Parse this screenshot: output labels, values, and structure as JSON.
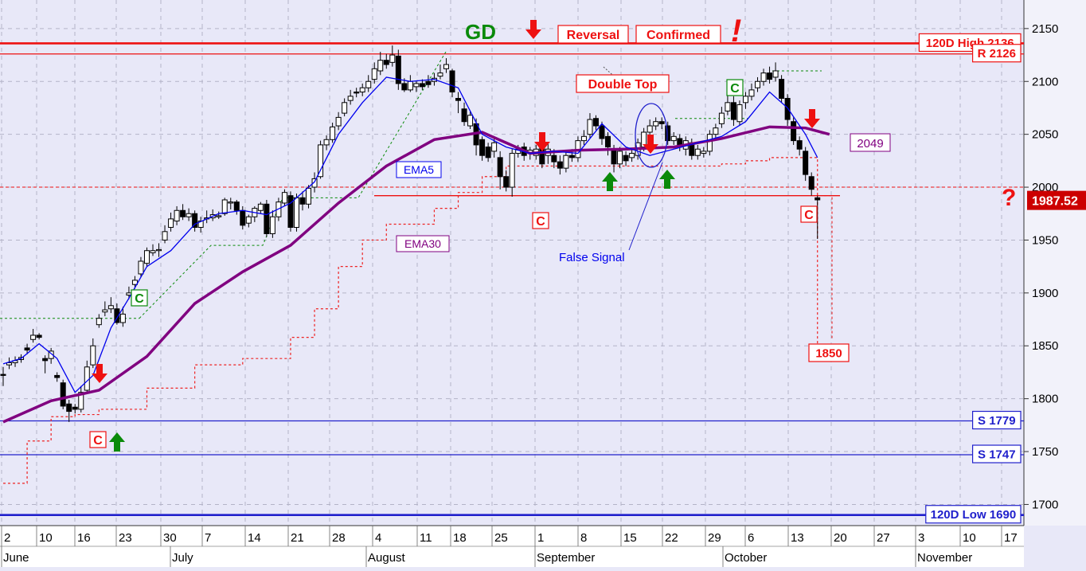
{
  "chart_data": {
    "type": "candlestick",
    "title": "",
    "xlabel": "",
    "ylabel": "",
    "ylim": [
      1680,
      2180
    ],
    "yticks": [
      1700,
      1750,
      1800,
      1850,
      1900,
      1950,
      2000,
      2050,
      2100,
      2150
    ],
    "grid": true,
    "x_tick_labels": [
      "2",
      "10",
      "16",
      "23",
      "30",
      "7",
      "14",
      "21",
      "28",
      "4",
      "11",
      "18",
      "25",
      "1",
      "8",
      "15",
      "22",
      "29",
      "6",
      "13",
      "20",
      "27",
      "3",
      "10",
      "17"
    ],
    "month_labels": [
      "June",
      "July",
      "August",
      "September",
      "October",
      "November"
    ],
    "last_price": "1987.52",
    "candles": [
      [
        1823,
        1822,
        1830,
        1812
      ],
      [
        1832,
        1834,
        1839,
        1828
      ],
      [
        1834,
        1836,
        1840,
        1830
      ],
      [
        1837,
        1839,
        1842,
        1834
      ],
      [
        1848,
        1846,
        1852,
        1842
      ],
      [
        1856,
        1860,
        1866,
        1853
      ],
      [
        1860,
        1858,
        1862,
        1856
      ],
      [
        1838,
        1836,
        1841,
        1824
      ],
      [
        1838,
        1845,
        1848,
        1833
      ],
      [
        1822,
        1820,
        1825,
        1816
      ],
      [
        1815,
        1793,
        1818,
        1790
      ],
      [
        1795,
        1788,
        1799,
        1778
      ],
      [
        1792,
        1790,
        1795,
        1786
      ],
      [
        1790,
        1806,
        1812,
        1787
      ],
      [
        1808,
        1830,
        1836,
        1805
      ],
      [
        1832,
        1850,
        1857,
        1829
      ],
      [
        1870,
        1876,
        1880,
        1867
      ],
      [
        1882,
        1884,
        1892,
        1878
      ],
      [
        1885,
        1888,
        1896,
        1881
      ],
      [
        1885,
        1872,
        1890,
        1870
      ],
      [
        1872,
        1880,
        1887,
        1868
      ],
      [
        1898,
        1900,
        1906,
        1894
      ],
      [
        1908,
        1912,
        1916,
        1904
      ],
      [
        1918,
        1930,
        1934,
        1915
      ],
      [
        1928,
        1940,
        1943,
        1925
      ],
      [
        1938,
        1940,
        1946,
        1935
      ],
      [
        1940,
        1941,
        1947,
        1934
      ],
      [
        1950,
        1958,
        1964,
        1947
      ],
      [
        1962,
        1970,
        1976,
        1958
      ],
      [
        1968,
        1978,
        1982,
        1964
      ],
      [
        1978,
        1972,
        1984,
        1969
      ],
      [
        1972,
        1975,
        1980,
        1968
      ],
      [
        1975,
        1962,
        1978,
        1958
      ],
      [
        1962,
        1968,
        1972,
        1957
      ],
      [
        1970,
        1971,
        1978,
        1966
      ],
      [
        1971,
        1974,
        1979,
        1968
      ],
      [
        1972,
        1973,
        1977,
        1970
      ],
      [
        1975,
        1988,
        1990,
        1973
      ],
      [
        1985,
        1986,
        1990,
        1979
      ],
      [
        1986,
        1978,
        1988,
        1974
      ],
      [
        1978,
        1964,
        1982,
        1960
      ],
      [
        1966,
        1972,
        1974,
        1962
      ],
      [
        1972,
        1980,
        1982,
        1967
      ],
      [
        1978,
        1984,
        1986,
        1975
      ],
      [
        1984,
        1956,
        1988,
        1953
      ],
      [
        1956,
        1972,
        1978,
        1952
      ],
      [
        1972,
        1986,
        1990,
        1968
      ],
      [
        1985,
        1995,
        1998,
        1982
      ],
      [
        1992,
        1962,
        1996,
        1958
      ],
      [
        1962,
        1990,
        1994,
        1958
      ],
      [
        1990,
        1984,
        1996,
        1978
      ],
      [
        1984,
        1999,
        2002,
        1980
      ],
      [
        2000,
        2008,
        2014,
        1995
      ],
      [
        2010,
        2040,
        2044,
        2008
      ],
      [
        2040,
        2045,
        2049,
        2035
      ],
      [
        2045,
        2057,
        2061,
        2042
      ],
      [
        2058,
        2066,
        2071,
        2054
      ],
      [
        2070,
        2080,
        2084,
        2067
      ],
      [
        2082,
        2086,
        2092,
        2078
      ],
      [
        2090,
        2089,
        2094,
        2085
      ],
      [
        2090,
        2094,
        2098,
        2086
      ],
      [
        2094,
        2100,
        2106,
        2090
      ],
      [
        2102,
        2112,
        2118,
        2098
      ],
      [
        2110,
        2120,
        2128,
        2106
      ],
      [
        2120,
        2116,
        2126,
        2112
      ],
      [
        2118,
        2125,
        2134,
        2114
      ],
      [
        2124,
        2098,
        2130,
        2092
      ],
      [
        2098,
        2092,
        2103,
        2090
      ],
      [
        2092,
        2100,
        2106,
        2090
      ],
      [
        2095,
        2098,
        2100,
        2090
      ],
      [
        2098,
        2095,
        2102,
        2092
      ],
      [
        2100,
        2097,
        2106,
        2094
      ],
      [
        2100,
        2103,
        2108,
        2096
      ],
      [
        2105,
        2108,
        2116,
        2102
      ],
      [
        2112,
        2116,
        2122,
        2108
      ],
      [
        2110,
        2090,
        2112,
        2085
      ],
      [
        2084,
        2082,
        2090,
        2070
      ],
      [
        2074,
        2062,
        2080,
        2058
      ],
      [
        2058,
        2068,
        2072,
        2055
      ],
      [
        2060,
        2040,
        2065,
        2030
      ],
      [
        2045,
        2030,
        2048,
        2025
      ],
      [
        2038,
        2028,
        2042,
        2024
      ],
      [
        2034,
        2042,
        2046,
        2028
      ],
      [
        2028,
        2010,
        2034,
        1998
      ],
      [
        2010,
        2000,
        2016,
        1996
      ],
      [
        2000,
        2032,
        2036,
        1991
      ],
      [
        2032,
        2036,
        2040,
        2028
      ],
      [
        2038,
        2030,
        2042,
        2025
      ],
      [
        2032,
        2035,
        2038,
        2026
      ],
      [
        2030,
        2036,
        2040,
        2026
      ],
      [
        2038,
        2022,
        2042,
        2018
      ],
      [
        2030,
        2036,
        2042,
        2022
      ],
      [
        2030,
        2024,
        2036,
        2018
      ],
      [
        2024,
        2018,
        2030,
        2012
      ],
      [
        2018,
        2030,
        2034,
        2014
      ],
      [
        2030,
        2028,
        2036,
        2024
      ],
      [
        2028,
        2044,
        2048,
        2024
      ],
      [
        2044,
        2048,
        2054,
        2040
      ],
      [
        2050,
        2064,
        2070,
        2046
      ],
      [
        2065,
        2058,
        2068,
        2054
      ],
      [
        2058,
        2046,
        2062,
        2040
      ],
      [
        2048,
        2038,
        2052,
        2030
      ],
      [
        2036,
        2022,
        2040,
        2014
      ],
      [
        2022,
        2034,
        2038,
        2018
      ],
      [
        2030,
        2025,
        2034,
        2020
      ],
      [
        2028,
        2032,
        2036,
        2024
      ],
      [
        2030,
        2042,
        2046,
        2026
      ],
      [
        2038,
        2052,
        2056,
        2034
      ],
      [
        2052,
        2058,
        2064,
        2048
      ],
      [
        2058,
        2062,
        2066,
        2054
      ],
      [
        2062,
        2060,
        2066,
        2055
      ],
      [
        2058,
        2044,
        2062,
        2040
      ],
      [
        2044,
        2048,
        2052,
        2040
      ],
      [
        2046,
        2038,
        2050,
        2034
      ],
      [
        2036,
        2044,
        2048,
        2030
      ],
      [
        2042,
        2030,
        2046,
        2026
      ],
      [
        2030,
        2036,
        2040,
        2026
      ],
      [
        2032,
        2034,
        2038,
        2028
      ],
      [
        2034,
        2050,
        2054,
        2030
      ],
      [
        2050,
        2056,
        2060,
        2046
      ],
      [
        2060,
        2070,
        2076,
        2056
      ],
      [
        2072,
        2080,
        2090,
        2068
      ],
      [
        2080,
        2064,
        2086,
        2058
      ],
      [
        2062,
        2078,
        2082,
        2058
      ],
      [
        2080,
        2086,
        2090,
        2074
      ],
      [
        2086,
        2092,
        2098,
        2082
      ],
      [
        2094,
        2100,
        2104,
        2090
      ],
      [
        2100,
        2108,
        2112,
        2096
      ],
      [
        2108,
        2102,
        2114,
        2098
      ],
      [
        2104,
        2110,
        2118,
        2100
      ],
      [
        2102,
        2084,
        2106,
        2080
      ],
      [
        2084,
        2064,
        2088,
        2058
      ],
      [
        2062,
        2044,
        2066,
        2040
      ],
      [
        2044,
        2036,
        2048,
        2030
      ],
      [
        2034,
        2012,
        2038,
        2006
      ],
      [
        2010,
        1998,
        2014,
        1992
      ],
      [
        1990,
        1988,
        1992,
        1951
      ]
    ],
    "series": [
      {
        "name": "EMA5",
        "type": "line",
        "color": "#0000ee",
        "x": [
          0,
          3,
          6,
          9,
          12,
          15,
          18,
          21,
          24,
          28,
          32,
          36,
          40,
          44,
          48,
          52,
          56,
          60,
          64,
          68,
          72,
          76,
          80,
          84,
          88,
          92,
          96,
          100,
          104,
          108,
          112,
          116,
          120,
          124,
          128,
          131,
          134,
          136
        ],
        "values": [
          1833,
          1838,
          1852,
          1838,
          1806,
          1822,
          1867,
          1895,
          1925,
          1940,
          1965,
          1975,
          1978,
          1974,
          1985,
          2005,
          2050,
          2080,
          2104,
          2100,
          2102,
          2094,
          2050,
          2038,
          2032,
          2034,
          2032,
          2060,
          2038,
          2030,
          2036,
          2042,
          2048,
          2062,
          2090,
          2075,
          2050,
          2028
        ]
      },
      {
        "name": "EMA30",
        "type": "line",
        "color": "#800080",
        "x": [
          0,
          8,
          16,
          24,
          32,
          40,
          48,
          56,
          64,
          72,
          80,
          88,
          96,
          104,
          112,
          120,
          128,
          134,
          138
        ],
        "values": [
          1778,
          1798,
          1808,
          1840,
          1890,
          1920,
          1945,
          1985,
          2020,
          2045,
          2052,
          2032,
          2035,
          2036,
          2038,
          2046,
          2057,
          2056,
          2050
        ]
      },
      {
        "name": "",
        "type": "stepped-stop",
        "color": "#ee2222",
        "x": [
          0,
          4,
          8,
          12,
          16,
          24,
          32,
          40,
          48,
          52,
          56,
          60,
          64,
          68,
          72,
          76,
          80,
          84,
          88,
          92,
          96,
          100,
          104,
          108,
          112,
          116,
          120,
          124,
          128,
          132,
          136
        ],
        "values": [
          1720,
          1760,
          1783,
          1785,
          1790,
          1810,
          1832,
          1838,
          1858,
          1885,
          1925,
          1950,
          1965,
          1965,
          1980,
          1995,
          2010,
          2020,
          2020,
          2020,
          2020,
          2020,
          2020,
          2020,
          2020,
          2020,
          2022,
          2025,
          2028,
          2028,
          1850
        ]
      }
    ],
    "lines": [
      {
        "label": "120D High 2136",
        "value": 2136,
        "color": "#ee1111"
      },
      {
        "label": "R 2126",
        "value": 2126,
        "color": "#ee1111"
      },
      {
        "label": "S 1779",
        "value": 1779,
        "color": "#2020cc"
      },
      {
        "label": "S 1747",
        "value": 1747,
        "color": "#2020cc"
      },
      {
        "label": "120D Low 1690",
        "value": 1690,
        "color": "#2020cc"
      }
    ],
    "annotations": [
      {
        "text": "GD",
        "color": "#0a8a0a"
      },
      {
        "text": "Reversal",
        "color": "#ee1111"
      },
      {
        "text": "Confirmed",
        "color": "#ee1111"
      },
      {
        "text": "!",
        "color": "#ee1111"
      },
      {
        "text": "Double Top",
        "color": "#ee1111"
      },
      {
        "text": "EMA5",
        "color": "#0000ee"
      },
      {
        "text": "EMA30",
        "color": "#800080"
      },
      {
        "text": "False Signal",
        "color": "#0000ee"
      },
      {
        "text": "2049",
        "color": "#800080"
      },
      {
        "text": "1850",
        "color": "#ee1111"
      },
      {
        "text": "?",
        "color": "#ee1111"
      },
      {
        "text": "C",
        "color": "#0a8a0a"
      },
      {
        "text": "C",
        "color": "#ee1111"
      }
    ]
  }
}
